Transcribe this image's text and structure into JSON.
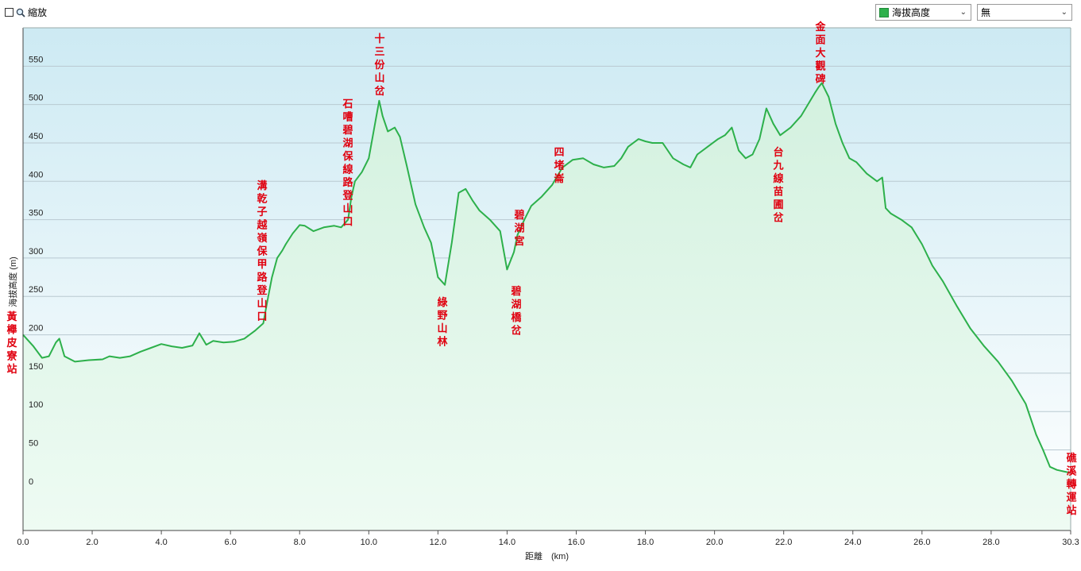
{
  "toolbar": {
    "zoom_label": "縮放",
    "metric_select": "海拔高度",
    "compare_select": "無",
    "series_color": "#2db04b"
  },
  "chart_data": {
    "type": "area",
    "xlabel": "距離　(km)",
    "ylabel": "海拔高度 (m)",
    "xlim": [
      0,
      30.3
    ],
    "ylim": [
      -55,
      600
    ],
    "x_ticks": [
      0.0,
      2.0,
      4.0,
      6.0,
      8.0,
      10.0,
      12.0,
      14.0,
      16.0,
      18.0,
      20.0,
      22.0,
      24.0,
      26.0,
      28.0,
      30.3
    ],
    "y_ticks": [
      0,
      50,
      100,
      150,
      200,
      250,
      300,
      350,
      400,
      450,
      500,
      550
    ],
    "grid": true,
    "series": [
      {
        "color": "#2db04b",
        "x": [
          0.0,
          0.3,
          0.55,
          0.75,
          0.95,
          1.05,
          1.2,
          1.5,
          1.9,
          2.3,
          2.5,
          2.8,
          3.1,
          3.4,
          3.7,
          4.0,
          4.3,
          4.6,
          4.9,
          5.1,
          5.3,
          5.5,
          5.8,
          6.1,
          6.4,
          6.7,
          6.95,
          7.05,
          7.2,
          7.35,
          7.5,
          7.6,
          7.8,
          8.0,
          8.15,
          8.4,
          8.7,
          9.0,
          9.2,
          9.4,
          9.5,
          9.6,
          9.8,
          10.0,
          10.2,
          10.3,
          10.4,
          10.55,
          10.75,
          10.9,
          11.1,
          11.35,
          11.6,
          11.8,
          12.0,
          12.2,
          12.4,
          12.6,
          12.8,
          13.0,
          13.2,
          13.5,
          13.8,
          14.0,
          14.2,
          14.3,
          14.5,
          14.7,
          15.0,
          15.3,
          15.6,
          15.9,
          16.2,
          16.5,
          16.8,
          17.1,
          17.3,
          17.5,
          17.8,
          18.0,
          18.2,
          18.5,
          18.8,
          19.1,
          19.3,
          19.5,
          19.8,
          20.1,
          20.3,
          20.5,
          20.7,
          20.9,
          21.1,
          21.3,
          21.5,
          21.7,
          21.9,
          22.2,
          22.5,
          22.7,
          22.9,
          23.0,
          23.1,
          23.3,
          23.5,
          23.7,
          23.9,
          24.1,
          24.4,
          24.7,
          24.85,
          24.95,
          25.1,
          25.4,
          25.7,
          26.0,
          26.3,
          26.6,
          27.0,
          27.4,
          27.8,
          28.2,
          28.6,
          29.0,
          29.3,
          29.5,
          29.7,
          29.9,
          30.1,
          30.3
        ],
        "y": [
          200,
          185,
          170,
          172,
          190,
          195,
          172,
          165,
          167,
          168,
          172,
          170,
          172,
          178,
          183,
          188,
          185,
          183,
          186,
          202,
          187,
          192,
          190,
          191,
          195,
          205,
          215,
          240,
          275,
          300,
          310,
          318,
          332,
          343,
          342,
          335,
          340,
          342,
          340,
          350,
          380,
          400,
          412,
          430,
          480,
          505,
          485,
          465,
          470,
          458,
          420,
          370,
          340,
          320,
          275,
          265,
          320,
          385,
          390,
          375,
          362,
          350,
          335,
          285,
          308,
          330,
          350,
          368,
          380,
          395,
          418,
          428,
          430,
          422,
          418,
          420,
          430,
          445,
          455,
          452,
          450,
          450,
          430,
          422,
          418,
          435,
          445,
          455,
          460,
          470,
          440,
          430,
          435,
          455,
          495,
          475,
          460,
          470,
          485,
          500,
          515,
          522,
          528,
          510,
          475,
          450,
          430,
          425,
          410,
          400,
          405,
          365,
          358,
          350,
          340,
          318,
          290,
          270,
          238,
          208,
          185,
          165,
          140,
          110,
          70,
          50,
          28,
          24,
          22,
          20
        ]
      }
    ],
    "annotations": [
      {
        "text": "黃櫸皮寮站",
        "x": 0.0,
        "y": 200
      },
      {
        "text": "溝乾子越嶺保甲路登山口",
        "x": 7.05,
        "y": 215
      },
      {
        "text": "石嘈碧湖保線路登山口",
        "x": 9.4,
        "y": 345
      },
      {
        "text": "十三份山岔",
        "x": 10.4,
        "y": 505
      },
      {
        "text": "綠野山林",
        "x": 12.2,
        "y": 265
      },
      {
        "text": "碧湖宮",
        "x": 14.45,
        "y": 320
      },
      {
        "text": "碧湖橋岔",
        "x": 14.3,
        "y": 285
      },
      {
        "text": "四堵崙",
        "x": 15.5,
        "y": 390
      },
      {
        "text": "台九線苗圃岔",
        "x": 21.9,
        "y": 458
      },
      {
        "text": "金面大觀碑",
        "x": 23.1,
        "y": 528
      },
      {
        "text": "礁溪轉運站",
        "x": 30.3,
        "y": 20
      }
    ]
  }
}
